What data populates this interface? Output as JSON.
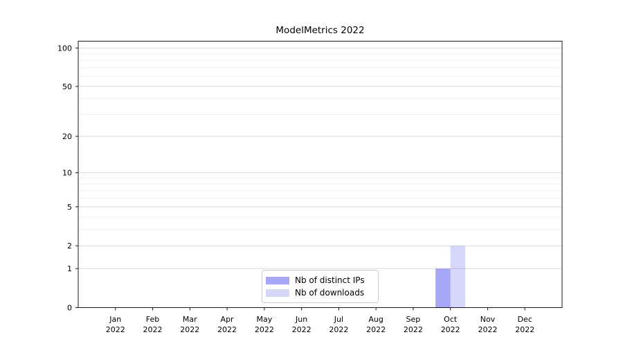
{
  "chart_data": {
    "type": "bar",
    "title": "ModelMetrics 2022",
    "categories": [
      "Jan 2022",
      "Feb 2022",
      "Mar 2022",
      "Apr 2022",
      "May 2022",
      "Jun 2022",
      "Jul 2022",
      "Aug 2022",
      "Sep 2022",
      "Oct 2022",
      "Nov 2022",
      "Dec 2022"
    ],
    "series": [
      {
        "name": "Nb of distinct IPs",
        "color": "rgba(93,95,241,0.55)",
        "values": [
          0,
          0,
          0,
          0,
          0,
          0,
          0,
          0,
          0,
          1,
          0,
          0
        ]
      },
      {
        "name": "Nb of downloads",
        "color": "rgba(93,95,241,0.25)",
        "values": [
          0,
          0,
          0,
          0,
          0,
          0,
          0,
          0,
          0,
          2,
          0,
          0
        ]
      }
    ],
    "yscale": "log1p",
    "ylim": [
      0,
      113
    ],
    "yticks": [
      0,
      1,
      2,
      5,
      10,
      20,
      50,
      100
    ],
    "minor_gridlines": [
      3,
      4,
      6,
      7,
      8,
      9,
      30,
      40,
      60,
      70,
      80,
      90
    ],
    "grid": "horizontal",
    "legend_position": "lower center",
    "xlabel": "",
    "ylabel": ""
  },
  "colors": {
    "axis": "#1a1a1a",
    "grid_major": "#d9d9d9",
    "grid_minor": "#f0f0f0",
    "tick_label": "#000000",
    "background": "#ffffff",
    "legend_border": "#cccccc"
  }
}
